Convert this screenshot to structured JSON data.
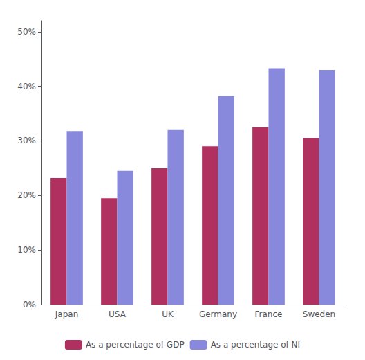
{
  "chart_data": {
    "type": "bar",
    "categories": [
      "Japan",
      "USA",
      "UK",
      "Germany",
      "France",
      "Sweden"
    ],
    "series": [
      {
        "name": "As a percentage of GDP",
        "color": "#B03060",
        "values": [
          23.2,
          19.5,
          25.0,
          29.0,
          32.5,
          30.5
        ]
      },
      {
        "name": "As a percentage of NI",
        "color": "#8888DD",
        "values": [
          31.8,
          24.5,
          32.0,
          38.2,
          43.3,
          43.0
        ]
      }
    ],
    "ylim": [
      0,
      52
    ],
    "yticks": [
      {
        "value": 0,
        "label": "0%"
      },
      {
        "value": 10,
        "label": "10%"
      },
      {
        "value": 20,
        "label": "20%"
      },
      {
        "value": 30,
        "label": "30%"
      },
      {
        "value": 40,
        "label": "40%"
      },
      {
        "value": 50,
        "label": "50%"
      }
    ],
    "grid": false,
    "legend": "bottom"
  }
}
